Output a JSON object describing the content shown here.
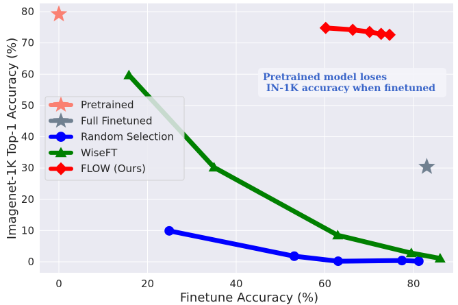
{
  "chart_data": {
    "type": "line",
    "title": "",
    "xlabel": "Finetune Accuracy (%)",
    "ylabel": "Imagenet-1K Top-1 Accuracy (%)",
    "xlim": [
      -4.5,
      88.5
    ],
    "ylim": [
      -3.5,
      82.5
    ],
    "xticks": [
      0,
      20,
      40,
      60,
      80
    ],
    "yticks": [
      0,
      10,
      20,
      30,
      40,
      50,
      60,
      70,
      80
    ],
    "grid": true,
    "legend_position": "center left",
    "series": [
      {
        "name": "Pretrained",
        "marker": "star",
        "color": "#fa8072",
        "x": [
          0
        ],
        "y": [
          79.2
        ]
      },
      {
        "name": "Full Finetuned",
        "marker": "star",
        "color": "#708090",
        "x": [
          83
        ],
        "y": [
          30.4
        ]
      },
      {
        "name": "Random Selection",
        "marker": "circle",
        "color": "#0000ff",
        "x": [
          24.9,
          53.1,
          63.0,
          77.4,
          81.2
        ],
        "y": [
          9.9,
          1.8,
          0.2,
          0.4,
          0.2
        ]
      },
      {
        "name": "WiseFT",
        "marker": "triangle",
        "color": "#008000",
        "x": [
          15.8,
          35.0,
          62.9,
          79.5,
          86.0
        ],
        "y": [
          59.7,
          30.2,
          8.5,
          2.8,
          1.1
        ]
      },
      {
        "name": "FLOW (Ours)",
        "marker": "diamond",
        "color": "#ff0000",
        "x": [
          60.2,
          66.3,
          70.1,
          72.7,
          74.6
        ],
        "y": [
          74.8,
          74.2,
          73.5,
          72.9,
          72.6
        ]
      }
    ],
    "annotations": [
      {
        "text_line1": "Pretrained model loses",
        "text_line2": " IN-1K accuracy when finetuned",
        "color": "#3b66c9"
      }
    ]
  },
  "axes": {
    "xlabel": "Finetune Accuracy (%)",
    "ylabel": "Imagenet-1K Top-1 Accuracy (%)",
    "xtick_labels": [
      "0",
      "20",
      "40",
      "60",
      "80"
    ],
    "ytick_labels": [
      "0",
      "10",
      "20",
      "30",
      "40",
      "50",
      "60",
      "70",
      "80"
    ]
  },
  "legend": {
    "items": [
      "Pretrained",
      "Full Finetuned",
      "Random Selection",
      "WiseFT",
      "FLOW (Ours)"
    ]
  },
  "annotation": {
    "line1": "Pretrained model loses",
    "line2": " IN-1K accuracy when finetuned"
  },
  "colors": {
    "background": "#eaeaf2",
    "grid": "#ffffff",
    "pretrained": "#fa8072",
    "full_finetuned": "#708090",
    "random": "#0000ff",
    "wiseft": "#008000",
    "flow": "#ff0000",
    "annotation": "#3b66c9"
  }
}
